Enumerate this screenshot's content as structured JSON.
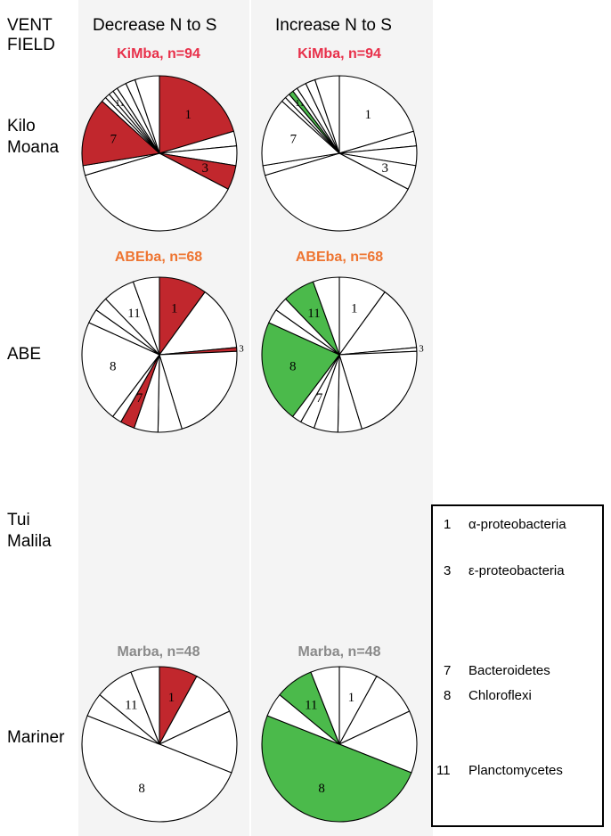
{
  "headers": {
    "field": "VENT\nFIELD",
    "decrease": "Decrease N to S",
    "increase": "Increase N to S"
  },
  "sites": {
    "kilo_moana": "Kilo\nMoana",
    "abe": "ABE",
    "tui_malila": "Tui\nMalila",
    "mariner": "Mariner"
  },
  "colors": {
    "decrease_highlight": "#c1272d",
    "increase_highlight": "#4bba4b",
    "kimba_title": "#e8304a",
    "abeba_title": "#ee7430",
    "marba_title": "#8a8a8a",
    "band": "#f4f4f4"
  },
  "legend": [
    {
      "num": "1",
      "name": "α-proteobacteria"
    },
    {
      "num": "3",
      "name": "ε-proteobacteria"
    },
    {
      "num": "7",
      "name": "Bacteroidetes"
    },
    {
      "num": "8",
      "name": "Chloroflexi"
    },
    {
      "num": "11",
      "name": "Planctomycetes"
    }
  ],
  "chart_data": [
    {
      "type": "pie",
      "title": "KiMba, n=94",
      "site": "Kilo Moana",
      "column": "Decrease N to S",
      "slices": [
        {
          "label": "1",
          "fraction": 0.2
        },
        {
          "label": "",
          "fraction": 0.03
        },
        {
          "label": "",
          "fraction": 0.04
        },
        {
          "label": "3",
          "fraction": 0.05
        },
        {
          "label": "",
          "fraction": 0.37
        },
        {
          "label": "",
          "fraction": 0.02
        },
        {
          "label": "7",
          "fraction": 0.14
        },
        {
          "label": "",
          "fraction": 0.01
        },
        {
          "label": "",
          "fraction": 0.01
        },
        {
          "label": "11",
          "fraction": 0.01
        },
        {
          "label": "",
          "fraction": 0.01
        },
        {
          "label": "",
          "fraction": 0.02
        },
        {
          "label": "",
          "fraction": 0.02
        },
        {
          "label": "",
          "fraction": 0.05
        }
      ],
      "highlighted": [
        "1",
        "3",
        "7"
      ]
    },
    {
      "type": "pie",
      "title": "KiMba, n=94",
      "site": "Kilo Moana",
      "column": "Increase N to S",
      "slices": [
        {
          "label": "1",
          "fraction": 0.2
        },
        {
          "label": "",
          "fraction": 0.03
        },
        {
          "label": "",
          "fraction": 0.04
        },
        {
          "label": "3",
          "fraction": 0.05
        },
        {
          "label": "",
          "fraction": 0.37
        },
        {
          "label": "",
          "fraction": 0.02
        },
        {
          "label": "7",
          "fraction": 0.14
        },
        {
          "label": "",
          "fraction": 0.01
        },
        {
          "label": "",
          "fraction": 0.01
        },
        {
          "label": "11",
          "fraction": 0.01
        },
        {
          "label": "",
          "fraction": 0.01
        },
        {
          "label": "",
          "fraction": 0.02
        },
        {
          "label": "",
          "fraction": 0.02
        },
        {
          "label": "",
          "fraction": 0.05
        }
      ],
      "highlighted": [
        "11"
      ]
    },
    {
      "type": "pie",
      "title": "ABEba, n=68",
      "site": "ABE",
      "column": "Decrease N to S",
      "slices": [
        {
          "label": "1",
          "fraction": 0.1
        },
        {
          "label": "",
          "fraction": 0.135
        },
        {
          "label": "3",
          "fraction": 0.008
        },
        {
          "label": "",
          "fraction": 0.21
        },
        {
          "label": "",
          "fraction": 0.05
        },
        {
          "label": "",
          "fraction": 0.05
        },
        {
          "label": "7",
          "fraction": 0.03
        },
        {
          "label": "",
          "fraction": 0.02
        },
        {
          "label": "8",
          "fraction": 0.215
        },
        {
          "label": "",
          "fraction": 0.03
        },
        {
          "label": "",
          "fraction": 0.03
        },
        {
          "label": "11",
          "fraction": 0.067
        },
        {
          "label": "",
          "fraction": 0.055
        }
      ],
      "highlighted": [
        "1",
        "3",
        "7"
      ]
    },
    {
      "type": "pie",
      "title": "ABEba, n=68",
      "site": "ABE",
      "column": "Increase N to S",
      "slices": [
        {
          "label": "1",
          "fraction": 0.1
        },
        {
          "label": "",
          "fraction": 0.135
        },
        {
          "label": "3",
          "fraction": 0.008
        },
        {
          "label": "",
          "fraction": 0.21
        },
        {
          "label": "",
          "fraction": 0.05
        },
        {
          "label": "",
          "fraction": 0.05
        },
        {
          "label": "7",
          "fraction": 0.03
        },
        {
          "label": "",
          "fraction": 0.02
        },
        {
          "label": "8",
          "fraction": 0.215
        },
        {
          "label": "",
          "fraction": 0.03
        },
        {
          "label": "",
          "fraction": 0.03
        },
        {
          "label": "11",
          "fraction": 0.067
        },
        {
          "label": "",
          "fraction": 0.055
        }
      ],
      "highlighted": [
        "8",
        "11"
      ]
    },
    {
      "type": "pie",
      "title": "Marba, n=48",
      "site": "Mariner",
      "column": "Decrease N to S",
      "slices": [
        {
          "label": "1",
          "fraction": 0.08
        },
        {
          "label": "",
          "fraction": 0.1
        },
        {
          "label": "",
          "fraction": 0.13
        },
        {
          "label": "8",
          "fraction": 0.5
        },
        {
          "label": "",
          "fraction": 0.05
        },
        {
          "label": "11",
          "fraction": 0.08
        },
        {
          "label": "",
          "fraction": 0.06
        }
      ],
      "highlighted": [
        "1"
      ]
    },
    {
      "type": "pie",
      "title": "Marba, n=48",
      "site": "Mariner",
      "column": "Increase N to S",
      "slices": [
        {
          "label": "1",
          "fraction": 0.08
        },
        {
          "label": "",
          "fraction": 0.1
        },
        {
          "label": "",
          "fraction": 0.13
        },
        {
          "label": "8",
          "fraction": 0.5
        },
        {
          "label": "",
          "fraction": 0.05
        },
        {
          "label": "11",
          "fraction": 0.08
        },
        {
          "label": "",
          "fraction": 0.06
        }
      ],
      "highlighted": [
        "8",
        "11"
      ]
    }
  ]
}
